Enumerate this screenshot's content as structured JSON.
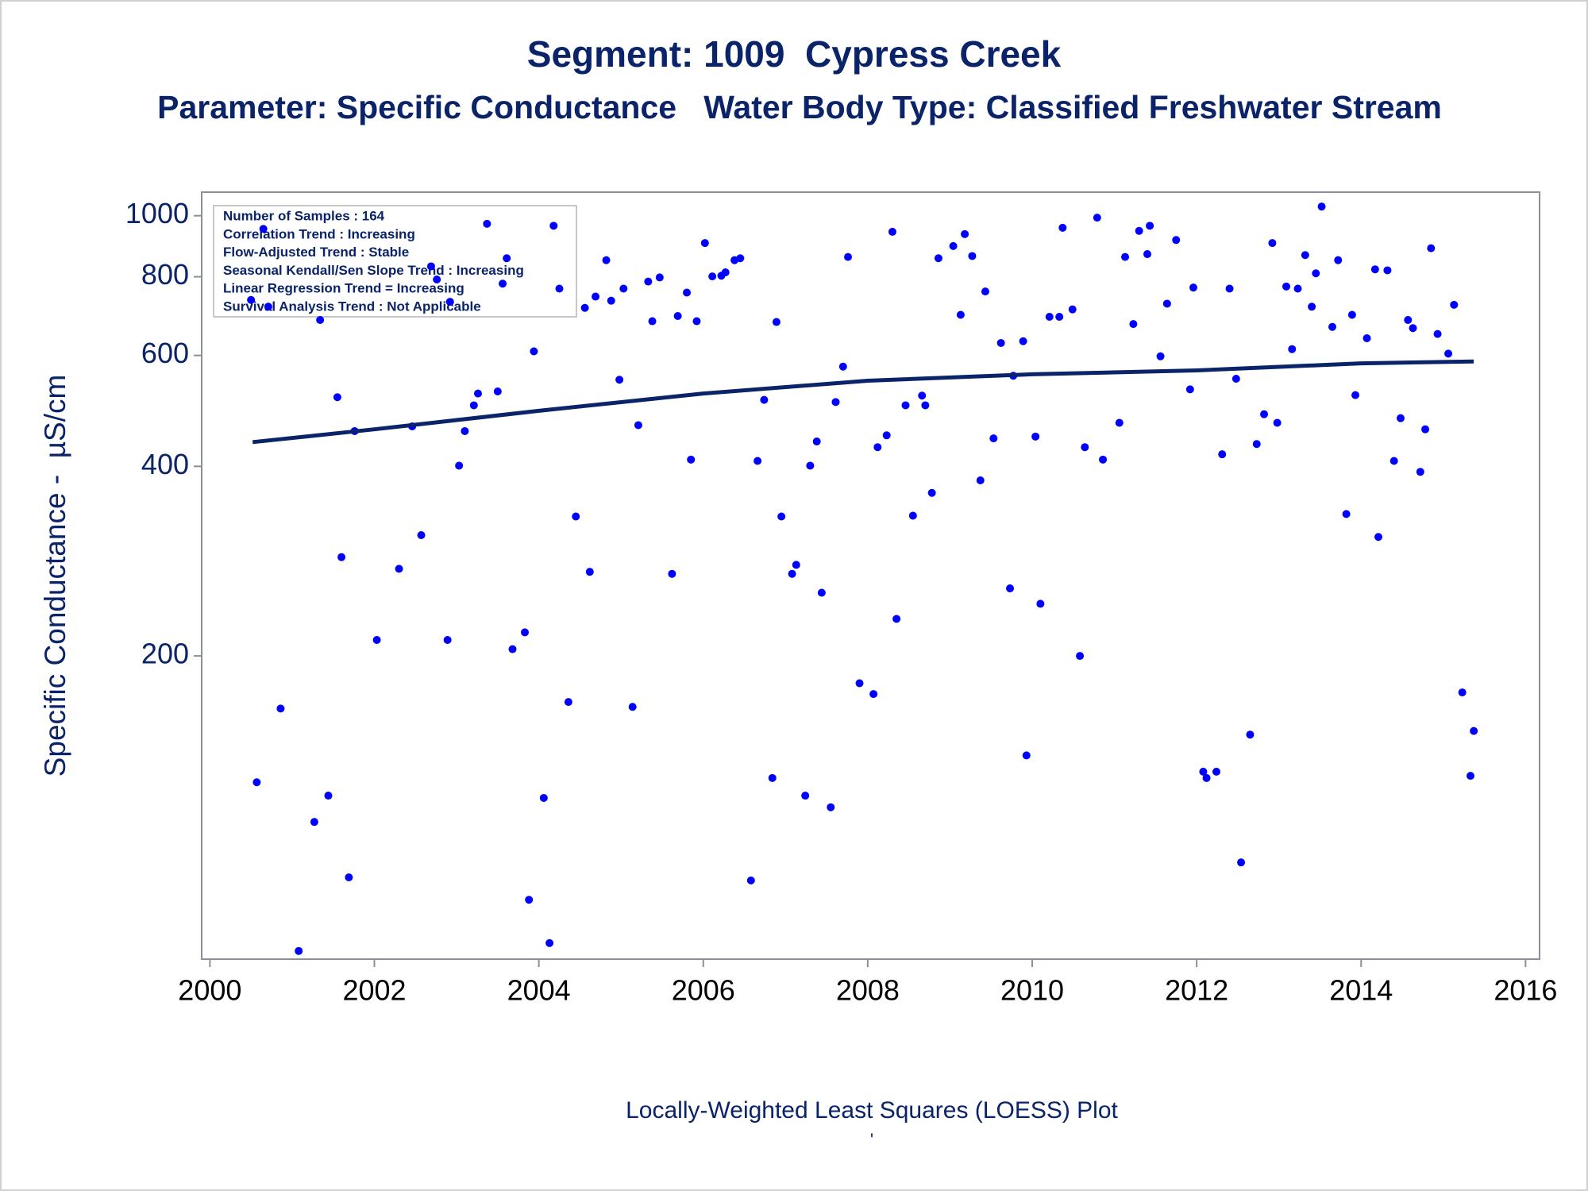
{
  "chart_data": {
    "type": "scatter",
    "title": "Segment: 1009  Cypress Creek",
    "subtitle": "Parameter: Specific Conductance   Water Body Type: Classified Freshwater Stream",
    "y_label": "Specific Conductance -  µS/cm",
    "footnote": "Locally-Weighted Least Squares (LOESS) Plot",
    "footnote2": "'",
    "annotations": [
      "Number of Samples : 164",
      "Correlation Trend : Increasing",
      "Flow-Adjusted Trend : Stable",
      "Seasonal Kendall/Sen Slope Trend : Increasing",
      "Linear Regression Trend = Increasing",
      "Survival Analysis Trend : Not Applicable"
    ],
    "log_y": true,
    "color": "#0000ff",
    "xlim": [
      1999.9,
      2016.17
    ],
    "xticks": [
      2000,
      2002,
      2004,
      2006,
      2008,
      2010,
      2012,
      2014,
      2016
    ],
    "ylim": [
      66,
      1090
    ],
    "yticks": [
      200,
      400,
      600,
      800,
      1000
    ],
    "x": [
      2000.5,
      2000.57,
      2000.65,
      2000.71,
      2000.86,
      2001.08,
      2001.27,
      2001.34,
      2001.44,
      2001.55,
      2001.6,
      2001.69,
      2001.76,
      2002.03,
      2002.3,
      2002.46,
      2002.57,
      2002.69,
      2002.76,
      2002.89,
      2002.92,
      2003.03,
      2003.1,
      2003.21,
      2003.26,
      2003.37,
      2003.5,
      2003.56,
      2003.61,
      2003.68,
      2003.83,
      2003.88,
      2003.94,
      2004.06,
      2004.13,
      2004.18,
      2004.25,
      2004.36,
      2004.45,
      2004.56,
      2004.62,
      2004.69,
      2004.82,
      2004.88,
      2004.98,
      2005.03,
      2005.14,
      2005.21,
      2005.33,
      2005.38,
      2005.47,
      2005.62,
      2005.69,
      2005.8,
      2005.85,
      2005.92,
      2006.02,
      2006.11,
      2006.22,
      2006.27,
      2006.38,
      2006.45,
      2006.58,
      2006.66,
      2006.74,
      2006.84,
      2006.89,
      2006.95,
      2007.08,
      2007.13,
      2007.24,
      2007.3,
      2007.38,
      2007.44,
      2007.55,
      2007.61,
      2007.7,
      2007.76,
      2007.9,
      2008.07,
      2008.12,
      2008.23,
      2008.3,
      2008.35,
      2008.46,
      2008.55,
      2008.66,
      2008.7,
      2008.78,
      2008.86,
      2009.04,
      2009.13,
      2009.18,
      2009.27,
      2009.37,
      2009.43,
      2009.53,
      2009.62,
      2009.73,
      2009.77,
      2009.89,
      2009.93,
      2010.04,
      2010.1,
      2010.21,
      2010.33,
      2010.37,
      2010.49,
      2010.58,
      2010.64,
      2010.79,
      2010.86,
      2011.06,
      2011.13,
      2011.23,
      2011.3,
      2011.4,
      2011.43,
      2011.56,
      2011.64,
      2011.75,
      2011.92,
      2011.96,
      2012.08,
      2012.12,
      2012.24,
      2012.31,
      2012.4,
      2012.48,
      2012.54,
      2012.65,
      2012.73,
      2012.82,
      2012.92,
      2012.98,
      2013.09,
      2013.16,
      2013.23,
      2013.32,
      2013.4,
      2013.45,
      2013.52,
      2013.65,
      2013.72,
      2013.82,
      2013.89,
      2013.93,
      2014.07,
      2014.17,
      2014.21,
      2014.32,
      2014.4,
      2014.48,
      2014.57,
      2014.63,
      2014.72,
      2014.78,
      2014.85,
      2014.93,
      2015.06,
      2015.13,
      2015.23,
      2015.33,
      2015.37
    ],
    "values": [
      735,
      126,
      953,
      717,
      165,
      68,
      109,
      683,
      120,
      515,
      287,
      89,
      455,
      212,
      275,
      463,
      311,
      831,
      792,
      212,
      730,
      401,
      455,
      500,
      522,
      971,
      526,
      780,
      856,
      205,
      218,
      82,
      609,
      119,
      70,
      964,
      766,
      169,
      333,
      714,
      272,
      744,
      850,
      733,
      549,
      766,
      166,
      465,
      786,
      680,
      798,
      270,
      693,
      755,
      410,
      680,
      905,
      801,
      803,
      813,
      850,
      856,
      88,
      408,
      510,
      128,
      678,
      333,
      270,
      279,
      120,
      401,
      438,
      252,
      115,
      506,
      576,
      860,
      181,
      174,
      429,
      448,
      943,
      229,
      500,
      334,
      518,
      500,
      363,
      856,
      895,
      696,
      935,
      863,
      380,
      758,
      443,
      628,
      256,
      557,
      632,
      139,
      446,
      242,
      691,
      691,
      957,
      710,
      200,
      429,
      993,
      410,
      469,
      860,
      673,
      946,
      869,
      964,
      598,
      725,
      915,
      530,
      769,
      131,
      128,
      131,
      418,
      766,
      551,
      94,
      150,
      434,
      484,
      905,
      469,
      772,
      614,
      766,
      866,
      717,
      810,
      1034,
      666,
      850,
      336,
      696,
      519,
      639,
      822,
      309,
      819,
      408,
      477,
      683,
      663,
      392,
      458,
      888,
      649,
      604,
      722,
      175,
      129,
      152
    ],
    "loess": {
      "color": "#0a2369",
      "x": [
        2000.52,
        2002,
        2004,
        2006,
        2008,
        2010,
        2012,
        2014,
        2015.37
      ],
      "values": [
        437,
        458,
        490,
        522,
        547,
        560,
        568,
        583,
        587
      ]
    }
  }
}
